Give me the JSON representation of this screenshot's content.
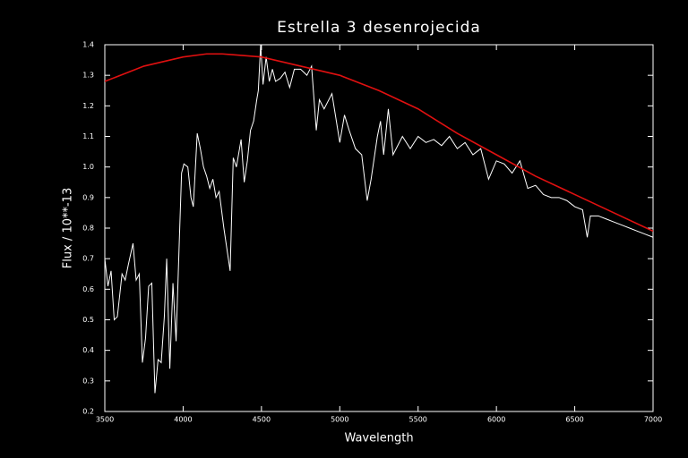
{
  "chart_data": {
    "type": "line",
    "title": "Estrella 3 desenrojecida",
    "xlabel": "Wavelength",
    "ylabel": "Flux / 10**-13",
    "xlim": [
      3500,
      7000
    ],
    "ylim": [
      0.2,
      1.4
    ],
    "xticks": [
      3500,
      4000,
      4500,
      5000,
      5500,
      6000,
      6500,
      7000
    ],
    "yticks": [
      0.2,
      0.3,
      0.4,
      0.5,
      0.6,
      0.7,
      0.8,
      0.9,
      {
        "value": 1,
        "label": "1.0"
      },
      1.1,
      1.2,
      1.3,
      1.4
    ],
    "series": [
      {
        "color": "#ffffff",
        "x": [
          3500,
          3520,
          3540,
          3560,
          3580,
          3610,
          3630,
          3650,
          3680,
          3700,
          3720,
          3740,
          3760,
          3780,
          3800,
          3820,
          3840,
          3860,
          3880,
          3895,
          3915,
          3935,
          3955,
          3975,
          3990,
          4005,
          4030,
          4050,
          4065,
          4090,
          4110,
          4130,
          4150,
          4170,
          4190,
          4210,
          4230,
          4260,
          4300,
          4320,
          4340,
          4370,
          4390,
          4410,
          4430,
          4450,
          4470,
          4480,
          4495,
          4510,
          4530,
          4550,
          4570,
          4590,
          4620,
          4650,
          4680,
          4710,
          4750,
          4790,
          4820,
          4850,
          4870,
          4900,
          4950,
          5000,
          5030,
          5060,
          5100,
          5140,
          5175,
          5200,
          5240,
          5260,
          5280,
          5310,
          5340,
          5400,
          5450,
          5500,
          5550,
          5600,
          5650,
          5700,
          5750,
          5800,
          5850,
          5900,
          5950,
          6000,
          6050,
          6100,
          6150,
          6200,
          6250,
          6300,
          6350,
          6400,
          6450,
          6500,
          6550,
          6580,
          6600,
          6650,
          6700,
          6750,
          6800,
          6850,
          6900,
          6950,
          7000
        ],
        "values": [
          0.7,
          0.61,
          0.66,
          0.5,
          0.51,
          0.65,
          0.63,
          0.68,
          0.75,
          0.63,
          0.65,
          0.36,
          0.44,
          0.61,
          0.62,
          0.26,
          0.37,
          0.36,
          0.51,
          0.7,
          0.34,
          0.62,
          0.43,
          0.75,
          0.98,
          1.01,
          1.0,
          0.9,
          0.87,
          1.11,
          1.06,
          1.0,
          0.97,
          0.93,
          0.96,
          0.9,
          0.92,
          0.8,
          0.66,
          1.03,
          1.0,
          1.09,
          0.95,
          1.02,
          1.12,
          1.15,
          1.22,
          1.25,
          1.4,
          1.27,
          1.36,
          1.28,
          1.32,
          1.28,
          1.29,
          1.31,
          1.26,
          1.32,
          1.32,
          1.3,
          1.33,
          1.12,
          1.22,
          1.19,
          1.24,
          1.08,
          1.17,
          1.12,
          1.06,
          1.04,
          0.89,
          0.96,
          1.1,
          1.15,
          1.04,
          1.19,
          1.04,
          1.1,
          1.06,
          1.1,
          1.08,
          1.09,
          1.07,
          1.1,
          1.06,
          1.08,
          1.04,
          1.06,
          0.96,
          1.02,
          1.01,
          0.98,
          1.02,
          0.93,
          0.94,
          0.91,
          0.9,
          0.9,
          0.89,
          0.87,
          0.86,
          0.77,
          0.84,
          0.84,
          0.83,
          0.82,
          0.81,
          0.8,
          0.79,
          0.78,
          0.77
        ]
      },
      {
        "color": "#e01010",
        "x": [
          3500,
          3750,
          4000,
          4150,
          4250,
          4500,
          4750,
          5000,
          5250,
          5500,
          5750,
          6000,
          6250,
          6500,
          6750,
          7000
        ],
        "values": [
          1.28,
          1.33,
          1.36,
          1.37,
          1.37,
          1.36,
          1.33,
          1.3,
          1.25,
          1.19,
          1.11,
          1.04,
          0.97,
          0.91,
          0.85,
          0.79
        ]
      }
    ]
  }
}
